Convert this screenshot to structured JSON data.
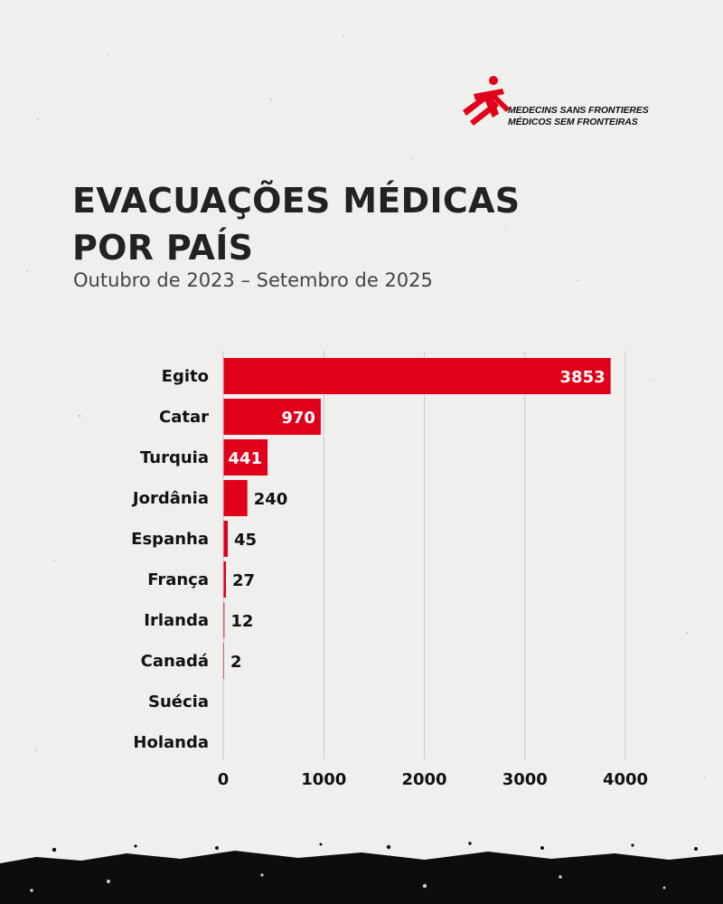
{
  "brand": {
    "line1": "MEDECINS SANS FRONTIERES",
    "line2": "MÉDICOS SEM FRONTEIRAS",
    "icon": "msf-logo-icon",
    "color": "#e1001a"
  },
  "header": {
    "title": "EVACUAÇÕES MÉDICAS\nPOR PAÍS",
    "subtitle": "Outubro de 2023 – Setembro de 2025"
  },
  "colors": {
    "bar": "#e1001a",
    "grid": "#c8c8c8",
    "text": "#111111",
    "background": "#efefee"
  },
  "chart_data": {
    "type": "bar",
    "orientation": "horizontal",
    "categories": [
      "Egito",
      "Catar",
      "Turquia",
      "Jordânia",
      "Espanha",
      "França",
      "Irlanda",
      "Canadá",
      "Suécia",
      "Holanda"
    ],
    "values": [
      3853,
      970,
      441,
      240,
      45,
      27,
      12,
      2,
      null,
      null
    ],
    "value_labels": [
      "3853",
      "970",
      "441",
      "240",
      "45",
      "27",
      "12",
      "2",
      "",
      ""
    ],
    "xlim": [
      0,
      4000
    ],
    "xticks": [
      "0",
      "1000",
      "2000",
      "3000",
      "4000"
    ],
    "grid": "vertical",
    "legend": "none"
  }
}
